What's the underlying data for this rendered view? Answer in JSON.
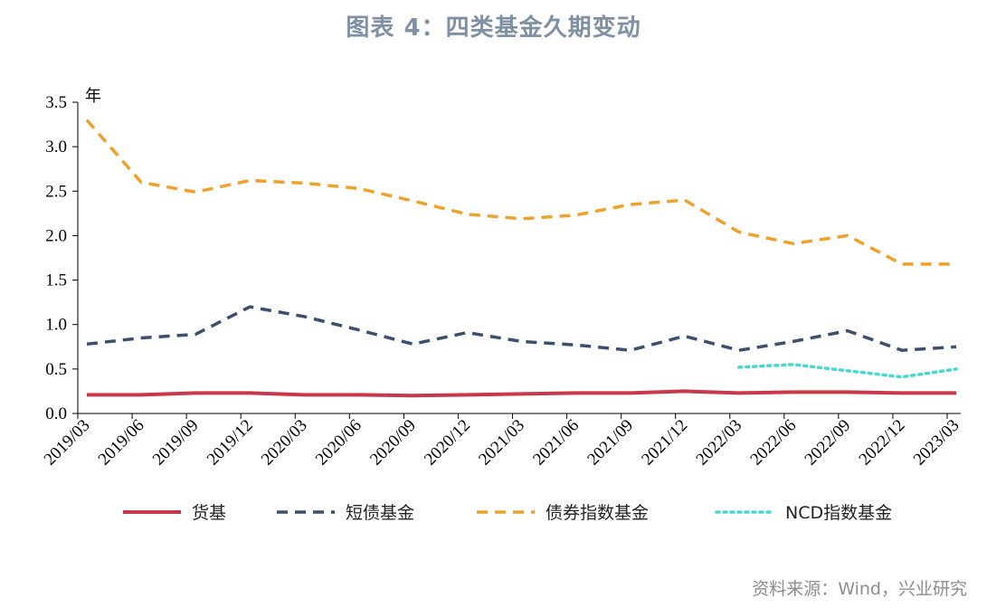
{
  "page": {
    "title": "图表 4：四类基金久期变动",
    "source": "资料来源：Wind，兴业研究"
  },
  "chart_data": {
    "type": "line",
    "title": "图表 4：四类基金久期变动",
    "ylabel": "年",
    "xlabel": "",
    "ylim": [
      0,
      3.5
    ],
    "yticks": [
      0.0,
      0.5,
      1.0,
      1.5,
      2.0,
      2.5,
      3.0,
      3.5
    ],
    "x_tick_labels": [
      "2019/03",
      "2019/06",
      "2019/09",
      "2019/12",
      "2020/03",
      "2020/06",
      "2020/09",
      "2020/12",
      "2021/03",
      "2021/06",
      "2021/09",
      "2021/12",
      "2022/03",
      "2022/06",
      "2022/09",
      "2022/12",
      "2023/03"
    ],
    "x": [
      "2019/03",
      "2019/06",
      "2019/09",
      "2019/12",
      "2020/03",
      "2020/06",
      "2020/09",
      "2020/12",
      "2021/03",
      "2021/06",
      "2021/09",
      "2021/12",
      "2022/03",
      "2022/06",
      "2022/09",
      "2022/12",
      "2023/03"
    ],
    "legend_position": "bottom",
    "grid": false,
    "series": [
      {
        "name": "货基",
        "color": "#c9374a",
        "style": "solid",
        "values": [
          0.21,
          0.21,
          0.23,
          0.23,
          0.21,
          0.21,
          0.2,
          0.21,
          0.22,
          0.23,
          0.23,
          0.25,
          0.23,
          0.24,
          0.24,
          0.23,
          0.23
        ]
      },
      {
        "name": "短债基金",
        "color": "#3d4f6e",
        "style": "dashed",
        "values": [
          0.78,
          0.85,
          0.89,
          1.2,
          1.09,
          0.94,
          0.78,
          0.91,
          0.81,
          0.77,
          0.71,
          0.87,
          0.71,
          0.81,
          0.93,
          0.71,
          0.75
        ]
      },
      {
        "name": "债券指数基金",
        "color": "#f0a12b",
        "style": "dashed",
        "values": [
          3.3,
          2.6,
          2.49,
          2.62,
          2.59,
          2.53,
          2.39,
          2.24,
          2.19,
          2.23,
          2.35,
          2.4,
          2.04,
          1.91,
          2.0,
          1.68,
          1.68
        ]
      },
      {
        "name": "NCD指数基金",
        "color": "#48d8d0",
        "style": "dotted",
        "values": [
          null,
          null,
          null,
          null,
          null,
          null,
          null,
          null,
          null,
          null,
          null,
          null,
          0.52,
          0.55,
          0.48,
          0.41,
          0.5
        ]
      }
    ]
  }
}
